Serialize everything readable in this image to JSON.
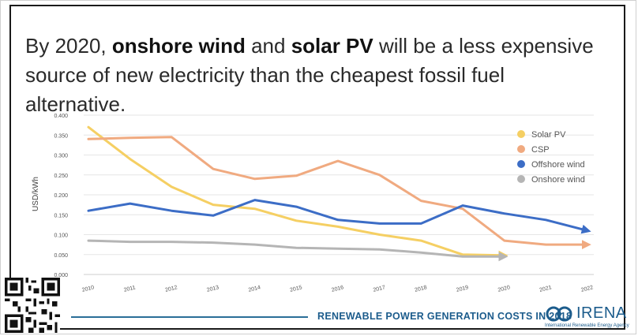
{
  "headline": {
    "part1": "By 2020, ",
    "bold1": "onshore wind",
    "part2": " and ",
    "bold2": "solar PV",
    "part3": " will be a less expensive source of new electricity than the cheapest fossil fuel alternative."
  },
  "footer": {
    "text": "RENEWABLE POWER GENERATION COSTS IN 2018",
    "logo_name": "IRENA",
    "logo_sub": "International Renewable Energy Agency"
  },
  "chart_data": {
    "type": "line",
    "xlabel": "",
    "ylabel": "USD/kWh",
    "categories": [
      "2010",
      "2011",
      "2012",
      "2013",
      "2014",
      "2015",
      "2016",
      "2017",
      "2018",
      "2019",
      "2020",
      "2021",
      "2022"
    ],
    "ylim": [
      0,
      0.4
    ],
    "yticks": [
      "0.000",
      "0.050",
      "0.100",
      "0.150",
      "0.200",
      "0.250",
      "0.300",
      "0.350",
      "0.400"
    ],
    "grid": true,
    "legend_position": "top-right",
    "series": [
      {
        "name": "Solar PV",
        "color": "#f5cf63",
        "values": [
          0.37,
          0.29,
          0.22,
          0.175,
          0.165,
          0.135,
          0.12,
          0.1,
          0.085,
          0.05,
          0.048,
          null,
          null
        ]
      },
      {
        "name": "CSP",
        "color": "#f0aa80",
        "values": [
          0.34,
          0.343,
          0.345,
          0.265,
          0.24,
          0.248,
          0.285,
          0.25,
          0.185,
          0.165,
          0.085,
          0.075,
          0.075
        ]
      },
      {
        "name": "Offshore wind",
        "color": "#3c6dc6",
        "values": [
          0.16,
          0.178,
          0.16,
          0.148,
          0.187,
          0.17,
          0.137,
          0.128,
          0.128,
          0.173,
          0.153,
          0.137,
          0.11
        ]
      },
      {
        "name": "Onshore wind",
        "color": "#b5b5b5",
        "values": [
          0.085,
          0.082,
          0.082,
          0.08,
          0.075,
          0.067,
          0.065,
          0.063,
          0.055,
          0.045,
          0.045,
          null,
          null
        ]
      }
    ]
  }
}
